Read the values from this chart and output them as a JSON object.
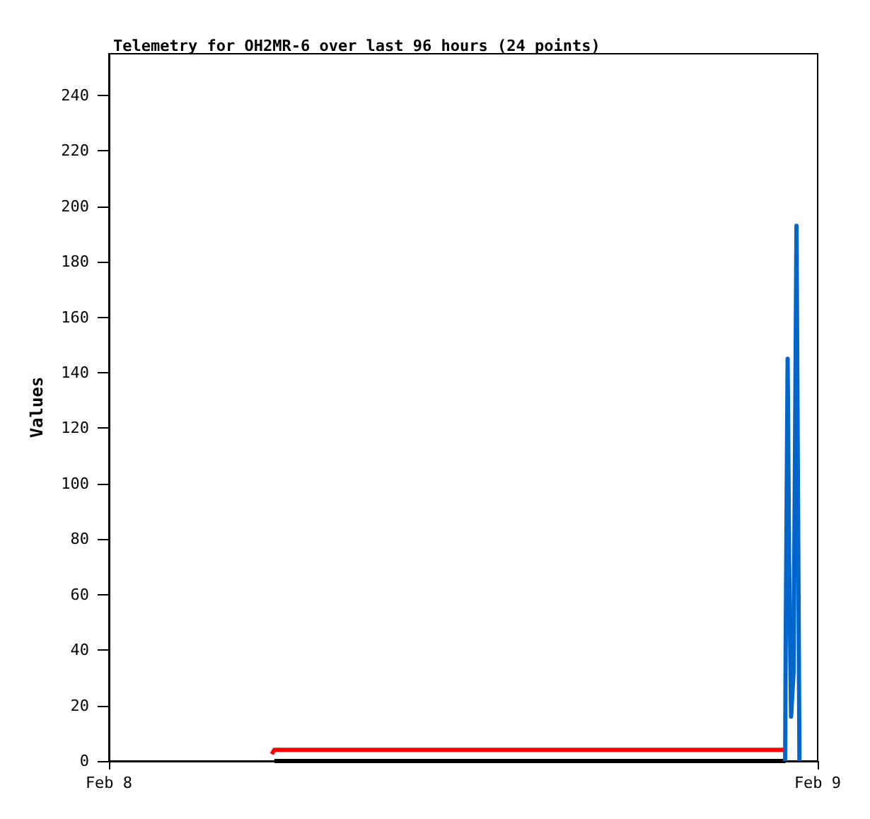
{
  "chart_data": {
    "type": "line",
    "title": "Telemetry for OH2MR-6 over last 96 hours (24 points)",
    "ylabel": "Values",
    "xlim": [
      "--02-08",
      "--02-09"
    ],
    "xticks": [
      {
        "value": "--02-08",
        "label": "Feb 8"
      },
      {
        "value": "--02-09",
        "label": "Feb 9"
      }
    ],
    "ylim": [
      0,
      255
    ],
    "yticks": [
      0,
      20,
      40,
      60,
      80,
      100,
      120,
      140,
      160,
      180,
      200,
      220,
      240
    ],
    "grid": false,
    "marker": "none",
    "line_style": "solid",
    "series": [
      {
        "color": "#000000",
        "x": [
          "--02-08T05:36",
          "--02-08T22:55"
        ],
        "values": [
          0,
          0
        ]
      },
      {
        "color": "#ff0000",
        "x": [
          "--02-08T05:31",
          "--02-08T05:36",
          "--02-08T22:57"
        ],
        "values": [
          2.5,
          4,
          4
        ]
      },
      {
        "color": "#0066cc",
        "x": [
          "--02-08T22:54",
          "--02-08T22:55",
          "--02-08T22:59",
          "--02-08T23:02",
          "--02-08T23:06",
          "--02-08T23:11",
          "--02-08T23:17",
          "--02-08T23:23"
        ],
        "values": [
          0,
          41,
          145,
          72,
          16,
          32,
          193,
          0
        ]
      }
    ]
  }
}
